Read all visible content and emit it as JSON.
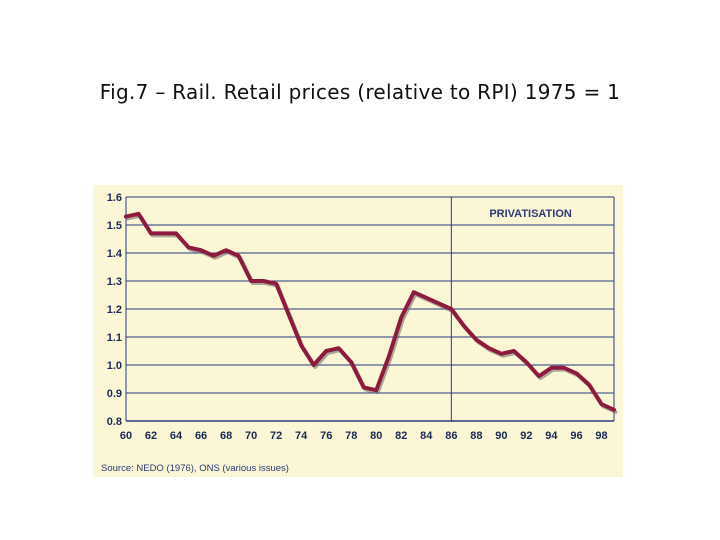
{
  "slide": {
    "title": "Fig.7 – Rail. Retail prices (relative to RPI) 1975 = 1"
  },
  "chart_data": {
    "type": "line",
    "title": "",
    "xlabel": "",
    "ylabel": "",
    "xlim": [
      1960,
      1999
    ],
    "ylim": [
      0.8,
      1.6
    ],
    "yticks": [
      "1.6",
      "1.5",
      "1.4",
      "1.3",
      "1.2",
      "1.1",
      "1.0",
      "0.9",
      "0.8"
    ],
    "xticks": [
      "60",
      "62",
      "64",
      "66",
      "68",
      "70",
      "72",
      "74",
      "76",
      "78",
      "80",
      "82",
      "84",
      "86",
      "88",
      "90",
      "92",
      "94",
      "96",
      "98"
    ],
    "grid": "horizontal",
    "annotation": {
      "label": "PRIVATISATION",
      "x": 1986
    },
    "source": "Source: NEDO  (1976), ONS (various issues)",
    "colors": {
      "line": "#8e1b3d",
      "shadow": "#6a6a6a",
      "grid": "#2a3a80",
      "panel": "#fbf7d6"
    },
    "series": [
      {
        "x": [
          1960,
          1961,
          1962,
          1963,
          1964,
          1965,
          1966,
          1967,
          1968,
          1969,
          1970,
          1971,
          1972,
          1973,
          1974,
          1975,
          1976,
          1977,
          1978,
          1979,
          1980,
          1981,
          1982,
          1983,
          1984,
          1985,
          1986,
          1987,
          1988,
          1989,
          1990,
          1991,
          1992,
          1993,
          1994,
          1995,
          1996,
          1997,
          1998,
          1999
        ],
        "y": [
          1.53,
          1.54,
          1.47,
          1.47,
          1.47,
          1.42,
          1.41,
          1.39,
          1.41,
          1.39,
          1.3,
          1.3,
          1.29,
          1.18,
          1.07,
          1.0,
          1.05,
          1.06,
          1.01,
          0.92,
          0.91,
          1.03,
          1.17,
          1.26,
          1.24,
          1.22,
          1.2,
          1.14,
          1.09,
          1.06,
          1.04,
          1.05,
          1.01,
          0.96,
          0.99,
          0.99,
          0.97,
          0.93,
          0.86,
          0.84
        ]
      }
    ]
  }
}
